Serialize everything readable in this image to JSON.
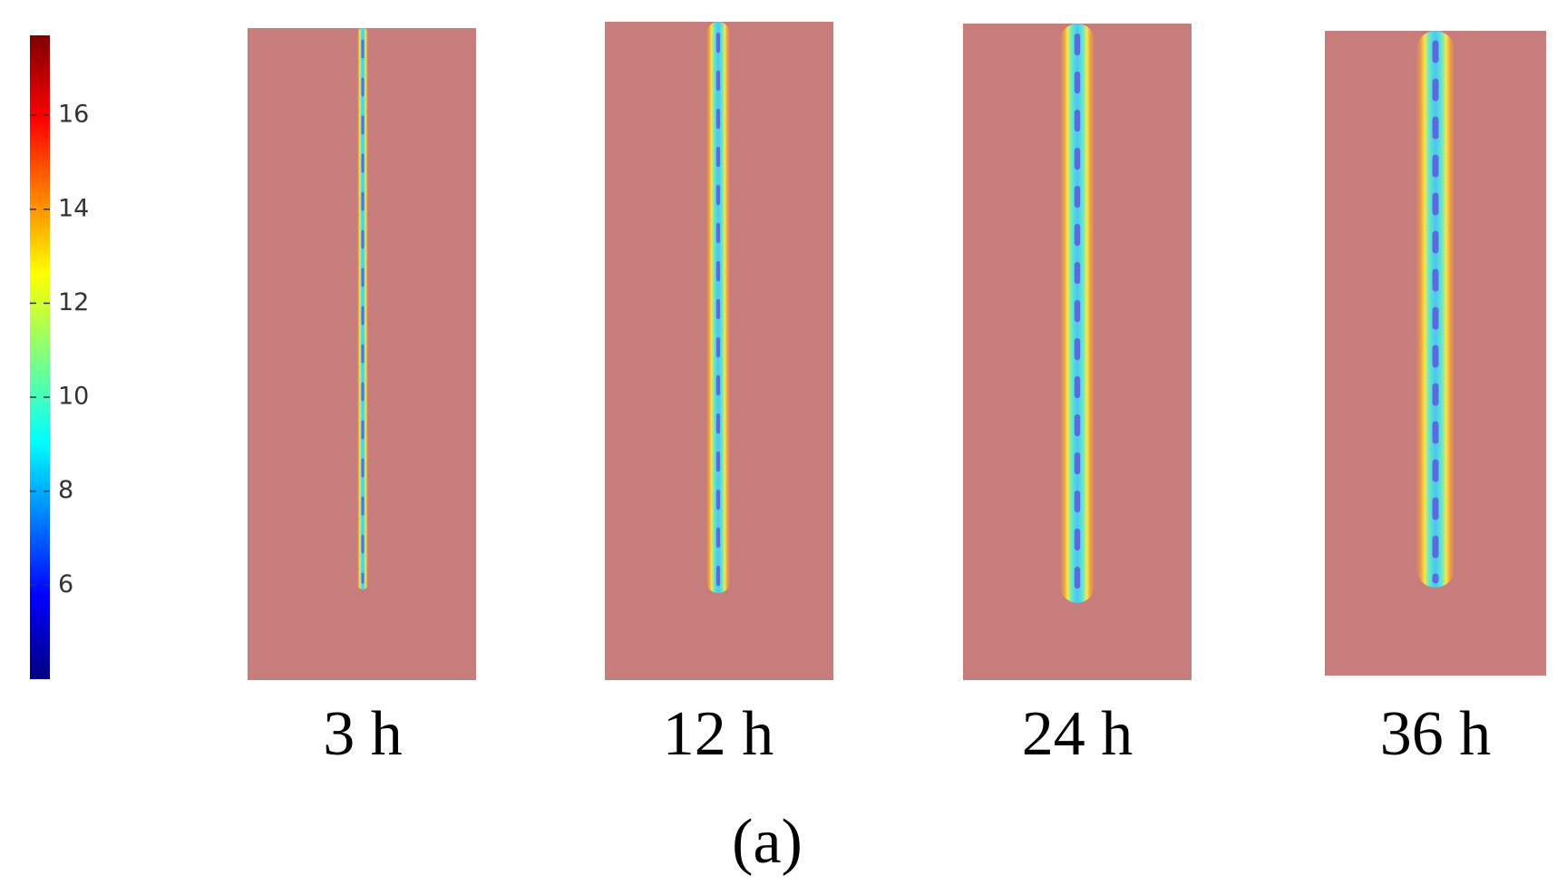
{
  "colorbar": {
    "lim": [
      4,
      17.7
    ],
    "ticks": [
      6,
      8,
      10,
      12,
      14,
      16
    ]
  },
  "panels": [
    {
      "label": "3 h"
    },
    {
      "label": "12 h"
    },
    {
      "label": "24 h"
    },
    {
      "label": "36 h"
    }
  ],
  "caption": "(a)"
}
